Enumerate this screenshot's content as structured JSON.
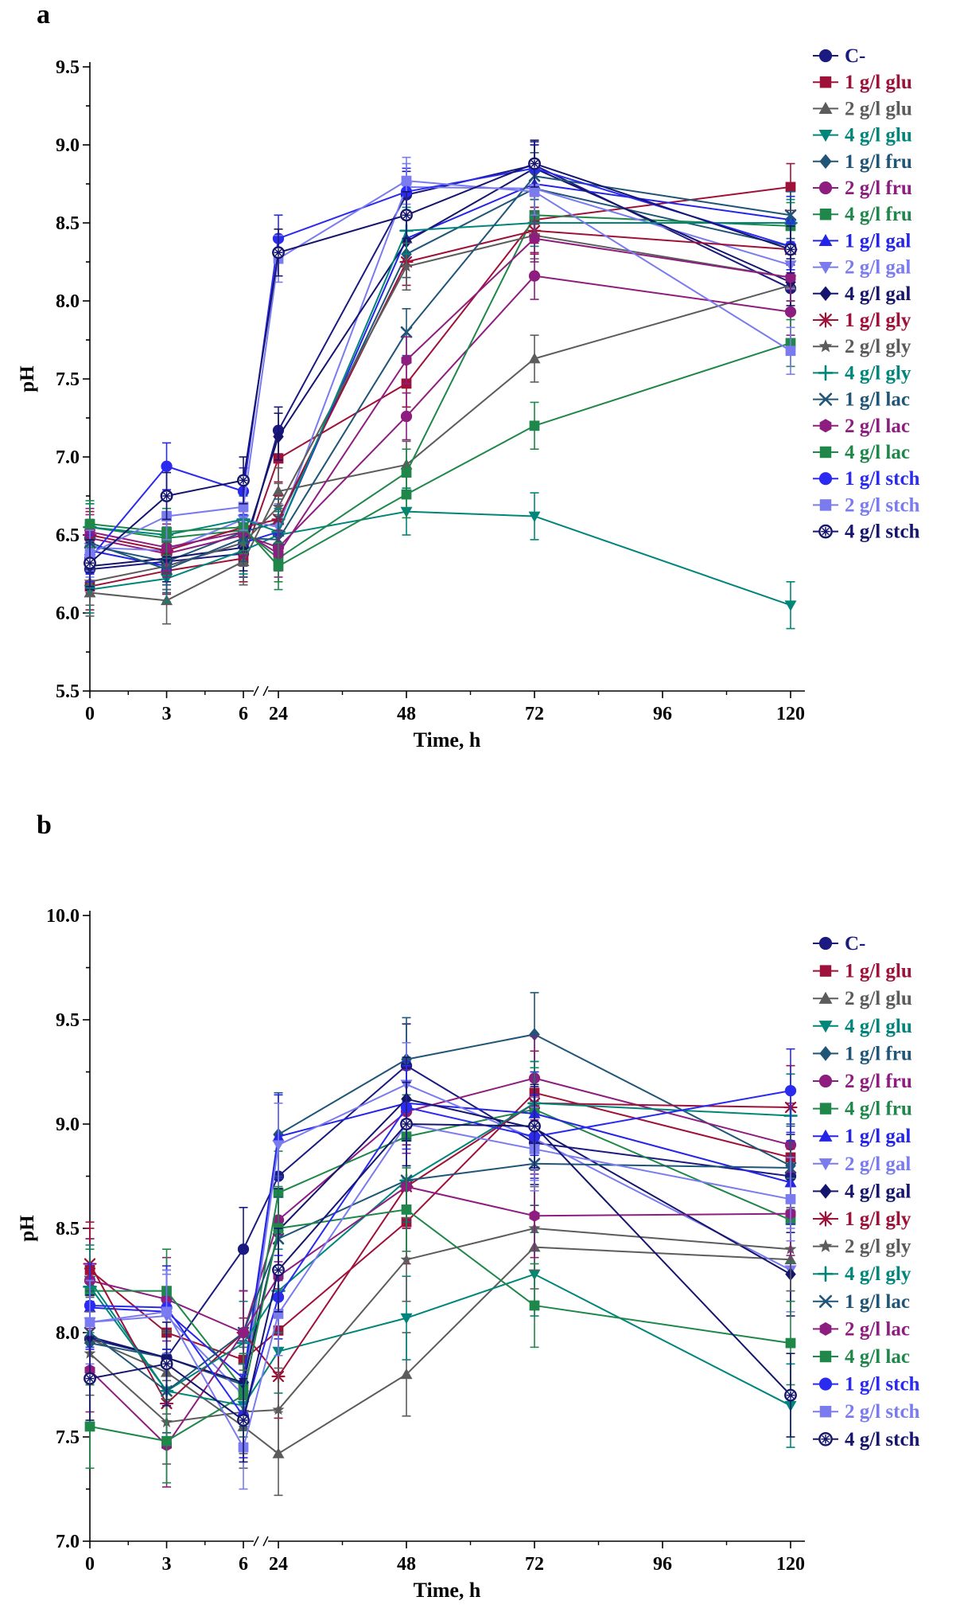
{
  "legend_items": [
    {
      "label": "C-",
      "color": "#1a1a80",
      "marker": "circle"
    },
    {
      "label": "1 g/l glu",
      "color": "#9e1239",
      "marker": "square"
    },
    {
      "label": "2 g/l glu",
      "color": "#5c5c5c",
      "marker": "triangle-up"
    },
    {
      "label": "4 g/l glu",
      "color": "#00857a",
      "marker": "triangle-down"
    },
    {
      "label": "1 g/l fru",
      "color": "#1f5577",
      "marker": "diamond"
    },
    {
      "label": "2 g/l fru",
      "color": "#8e1d80",
      "marker": "circle"
    },
    {
      "label": "4 g/l fru",
      "color": "#1e8749",
      "marker": "square"
    },
    {
      "label": "1 g/l gal",
      "color": "#2525e8",
      "marker": "triangle-up"
    },
    {
      "label": "2 g/l gal",
      "color": "#7b7bf0",
      "marker": "triangle-down"
    },
    {
      "label": "4 g/l gal",
      "color": "#15156e",
      "marker": "diamond"
    },
    {
      "label": "1 g/l gly",
      "color": "#9e1239",
      "marker": "asterisk"
    },
    {
      "label": "2 g/l gly",
      "color": "#5c5c5c",
      "marker": "star"
    },
    {
      "label": "4 g/l gly",
      "color": "#00857a",
      "marker": "plus"
    },
    {
      "label": "1 g/l lac",
      "color": "#1f5577",
      "marker": "x"
    },
    {
      "label": "2 g/l lac",
      "color": "#8e1d80",
      "marker": "hexagon"
    },
    {
      "label": "4 g/l lac",
      "color": "#1e8749",
      "marker": "square"
    },
    {
      "label": "1 g/l stch",
      "color": "#2a2af0",
      "marker": "circle"
    },
    {
      "label": "2 g/l stch",
      "color": "#7b7bf0",
      "marker": "square"
    },
    {
      "label": "4 g/l stch",
      "color": "#15156e",
      "marker": "circle-cross"
    }
  ],
  "chart_data": [
    {
      "panel_label": "a",
      "type": "line",
      "xlabel": "Time, h",
      "ylabel": "pH",
      "x": [
        0,
        3,
        6,
        24,
        48,
        72,
        120
      ],
      "x_axis_ticks": [
        0,
        3,
        6,
        24,
        48,
        72,
        96,
        120
      ],
      "x_axis_minor_ticks": [
        1.5,
        4.5,
        36,
        60,
        84,
        108
      ],
      "x_axis_break_between": [
        6,
        24
      ],
      "ylim": [
        5.5,
        9.5
      ],
      "ytick_step": 0.5,
      "grid": false,
      "legend_position": "right",
      "error_bar": 0.15,
      "series": [
        {
          "name": "C-",
          "values": [
            6.28,
            6.33,
            6.38,
            7.17,
            8.68,
            8.87,
            8.08
          ]
        },
        {
          "name": "1 g/l glu",
          "values": [
            6.17,
            6.27,
            6.35,
            6.99,
            7.47,
            8.52,
            8.73
          ]
        },
        {
          "name": "2 g/l glu",
          "values": [
            6.13,
            6.08,
            6.33,
            6.78,
            6.95,
            7.63,
            8.1
          ]
        },
        {
          "name": "4 g/l glu",
          "values": [
            6.15,
            6.22,
            6.4,
            6.5,
            6.65,
            6.62,
            6.05
          ]
        },
        {
          "name": "1 g/l fru",
          "values": [
            6.43,
            6.33,
            6.52,
            6.58,
            8.3,
            8.72,
            8.35
          ]
        },
        {
          "name": "2 g/l fru",
          "values": [
            6.48,
            6.38,
            6.5,
            6.42,
            7.26,
            8.16,
            7.93
          ]
        },
        {
          "name": "4 g/l fru",
          "values": [
            6.55,
            6.48,
            6.53,
            6.35,
            6.9,
            8.55,
            8.48
          ]
        },
        {
          "name": "1 g/l gal",
          "values": [
            6.4,
            6.3,
            6.45,
            6.52,
            8.4,
            8.75,
            8.52
          ]
        },
        {
          "name": "2 g/l gal",
          "values": [
            6.42,
            6.4,
            6.6,
            6.55,
            8.73,
            8.72,
            8.23
          ]
        },
        {
          "name": "4 g/l gal",
          "values": [
            6.3,
            6.35,
            6.42,
            7.13,
            8.38,
            8.85,
            8.12
          ]
        },
        {
          "name": "1 g/l gly",
          "values": [
            6.5,
            6.4,
            6.55,
            6.6,
            8.25,
            8.45,
            8.33
          ]
        },
        {
          "name": "2 g/l gly",
          "values": [
            6.2,
            6.3,
            6.45,
            6.68,
            8.22,
            8.42,
            8.15
          ]
        },
        {
          "name": "4 g/l gly",
          "values": [
            6.55,
            6.5,
            6.6,
            6.52,
            8.45,
            8.5,
            8.5
          ]
        },
        {
          "name": "1 g/l lac",
          "values": [
            6.45,
            6.28,
            6.48,
            6.47,
            7.8,
            8.8,
            8.55
          ]
        },
        {
          "name": "2 g/l lac",
          "values": [
            6.52,
            6.42,
            6.52,
            6.38,
            7.62,
            8.4,
            8.15
          ]
        },
        {
          "name": "4 g/l lac",
          "values": [
            6.57,
            6.52,
            6.55,
            6.3,
            6.76,
            7.2,
            7.73
          ]
        },
        {
          "name": "1 g/l stch",
          "values": [
            6.35,
            6.94,
            6.78,
            8.4,
            8.7,
            8.85,
            8.35
          ]
        },
        {
          "name": "2 g/l stch",
          "values": [
            6.38,
            6.62,
            6.68,
            8.27,
            8.77,
            8.7,
            7.68
          ]
        },
        {
          "name": "4 g/l stch",
          "values": [
            6.32,
            6.75,
            6.85,
            8.31,
            8.55,
            8.88,
            8.33
          ]
        }
      ]
    },
    {
      "panel_label": "b",
      "type": "line",
      "xlabel": "Time, h",
      "ylabel": "pH",
      "x": [
        0,
        3,
        6,
        24,
        48,
        72,
        120
      ],
      "x_axis_ticks": [
        0,
        3,
        6,
        24,
        48,
        72,
        96,
        120
      ],
      "x_axis_minor_ticks": [
        1.5,
        4.5,
        36,
        60,
        84,
        108
      ],
      "x_axis_break_between": [
        6,
        24
      ],
      "ylim": [
        7.0,
        10.0
      ],
      "ytick_step": 0.5,
      "grid": false,
      "legend_position": "right",
      "error_bar": 0.2,
      "series": [
        {
          "name": "C-",
          "values": [
            7.97,
            7.88,
            8.4,
            8.75,
            9.28,
            8.91,
            8.75
          ]
        },
        {
          "name": "1 g/l glu",
          "values": [
            8.3,
            8.0,
            7.87,
            8.01,
            8.53,
            9.15,
            8.84
          ]
        },
        {
          "name": "2 g/l glu",
          "values": [
            7.97,
            7.81,
            7.55,
            7.42,
            7.8,
            8.41,
            8.35
          ]
        },
        {
          "name": "4 g/l glu",
          "values": [
            8.25,
            7.72,
            7.65,
            7.91,
            8.07,
            8.28,
            7.65
          ]
        },
        {
          "name": "1 g/l fru",
          "values": [
            7.95,
            7.88,
            7.75,
            8.95,
            9.31,
            9.43,
            8.8
          ]
        },
        {
          "name": "2 g/l fru",
          "values": [
            8.25,
            8.16,
            8.0,
            8.54,
            9.06,
            9.22,
            8.9
          ]
        },
        {
          "name": "4 g/l fru",
          "values": [
            8.2,
            8.2,
            7.73,
            8.67,
            8.94,
            9.07,
            8.54
          ]
        },
        {
          "name": "1 g/l gal",
          "values": [
            8.12,
            8.1,
            7.78,
            8.94,
            9.1,
            9.05,
            8.72
          ]
        },
        {
          "name": "2 g/l gal",
          "values": [
            8.05,
            8.08,
            7.7,
            8.9,
            9.19,
            8.93,
            8.3
          ]
        },
        {
          "name": "4 g/l gal",
          "values": [
            7.98,
            7.88,
            7.76,
            8.49,
            9.12,
            8.98,
            8.28
          ]
        },
        {
          "name": "1 g/l gly",
          "values": [
            8.33,
            7.66,
            8.0,
            7.79,
            8.7,
            9.1,
            9.08
          ]
        },
        {
          "name": "2 g/l gly",
          "values": [
            7.9,
            7.57,
            7.62,
            7.63,
            8.35,
            8.5,
            8.4
          ]
        },
        {
          "name": "4 g/l gly",
          "values": [
            8.22,
            7.72,
            7.95,
            8.2,
            8.73,
            9.1,
            9.04
          ]
        },
        {
          "name": "1 g/l lac",
          "values": [
            8.0,
            7.72,
            8.0,
            8.45,
            8.73,
            8.81,
            8.79
          ]
        },
        {
          "name": "2 g/l lac",
          "values": [
            7.82,
            7.46,
            8.0,
            8.27,
            8.7,
            8.56,
            8.57
          ]
        },
        {
          "name": "4 g/l lac",
          "values": [
            7.55,
            7.48,
            7.7,
            8.5,
            8.59,
            8.13,
            7.95
          ]
        },
        {
          "name": "1 g/l stch",
          "values": [
            8.13,
            8.12,
            7.6,
            8.17,
            9.08,
            8.94,
            9.16
          ]
        },
        {
          "name": "2 g/l stch",
          "values": [
            8.05,
            8.1,
            7.45,
            8.09,
            9.0,
            8.88,
            8.64
          ]
        },
        {
          "name": "4 g/l stch",
          "values": [
            7.78,
            7.85,
            7.58,
            8.3,
            9.0,
            8.99,
            7.7
          ]
        }
      ]
    }
  ]
}
